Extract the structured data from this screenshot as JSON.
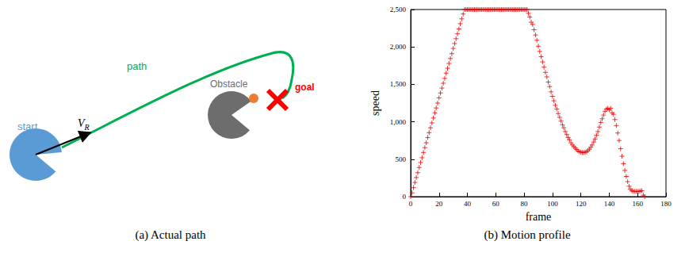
{
  "diagram": {
    "start_label": "start",
    "velocity_label": {
      "symbol": "V",
      "subscript": "R"
    },
    "path_label": "path",
    "obstacle_label": "Obstacle",
    "goal_label": "goal"
  },
  "captions": [
    "(a) Actual path",
    "(b) Motion profile"
  ],
  "chart_data": {
    "type": "scatter",
    "x_label": "frame",
    "y_label": "speed",
    "color": "#ee0000",
    "marker": "plus",
    "grid": false,
    "xlim": [
      0,
      180
    ],
    "xticks": [
      0,
      20,
      40,
      60,
      80,
      100,
      120,
      140,
      160,
      180
    ],
    "ylim": [
      0,
      2500
    ],
    "yticks": [
      0,
      500,
      1000,
      1500,
      2000,
      2500
    ],
    "x": [
      0,
      1,
      2,
      3,
      4,
      5,
      6,
      7,
      8,
      9,
      10,
      11,
      12,
      13,
      14,
      15,
      16,
      17,
      18,
      19,
      20,
      21,
      22,
      23,
      24,
      25,
      26,
      27,
      28,
      29,
      30,
      31,
      32,
      33,
      34,
      35,
      36,
      37,
      38,
      39,
      40,
      41,
      42,
      43,
      44,
      45,
      46,
      47,
      48,
      49,
      50,
      51,
      52,
      53,
      54,
      55,
      56,
      57,
      58,
      59,
      60,
      61,
      62,
      63,
      64,
      65,
      66,
      67,
      68,
      69,
      70,
      71,
      72,
      73,
      74,
      75,
      76,
      77,
      78,
      79,
      80,
      81,
      82,
      83,
      84,
      85,
      86,
      87,
      88,
      89,
      90,
      91,
      92,
      93,
      94,
      95,
      96,
      97,
      98,
      99,
      100,
      101,
      102,
      103,
      104,
      105,
      106,
      107,
      108,
      109,
      110,
      111,
      112,
      113,
      114,
      115,
      116,
      117,
      118,
      119,
      120,
      121,
      122,
      123,
      124,
      125,
      126,
      127,
      128,
      129,
      130,
      131,
      132,
      133,
      134,
      135,
      136,
      137,
      138,
      139,
      140,
      141,
      142,
      143,
      144,
      145,
      146,
      147,
      148,
      149,
      150,
      151,
      152,
      153,
      154,
      155,
      156,
      157,
      158,
      159,
      160,
      161,
      162,
      163,
      164,
      165
    ],
    "values": [
      0,
      50,
      120,
      190,
      255,
      320,
      390,
      455,
      520,
      590,
      655,
      720,
      790,
      855,
      920,
      985,
      1050,
      1120,
      1185,
      1250,
      1320,
      1385,
      1450,
      1515,
      1580,
      1650,
      1715,
      1780,
      1845,
      1910,
      1980,
      2045,
      2110,
      2175,
      2240,
      2310,
      2375,
      2440,
      2500,
      2500,
      2500,
      2500,
      2500,
      2500,
      2500,
      2500,
      2500,
      2500,
      2500,
      2500,
      2500,
      2500,
      2500,
      2500,
      2500,
      2500,
      2500,
      2500,
      2500,
      2500,
      2500,
      2500,
      2500,
      2500,
      2500,
      2500,
      2500,
      2500,
      2500,
      2500,
      2500,
      2500,
      2500,
      2500,
      2500,
      2500,
      2500,
      2500,
      2500,
      2500,
      2500,
      2500,
      2500,
      2450,
      2400,
      2330,
      2300,
      2230,
      2160,
      2090,
      2010,
      1940,
      1870,
      1800,
      1730,
      1660,
      1600,
      1530,
      1470,
      1400,
      1340,
      1280,
      1220,
      1170,
      1110,
      1060,
      1010,
      960,
      920,
      870,
      830,
      790,
      760,
      720,
      690,
      670,
      650,
      630,
      610,
      600,
      595,
      590,
      590,
      595,
      600,
      615,
      635,
      660,
      690,
      730,
      770,
      820,
      870,
      930,
      990,
      1040,
      1090,
      1140,
      1170,
      1180,
      1160,
      1180,
      1120,
      1100,
      1030,
      950,
      850,
      750,
      640,
      540,
      440,
      350,
      270,
      200,
      140,
      100,
      80,
      70,
      70,
      70,
      70,
      70,
      75,
      80,
      20,
      0
    ]
  }
}
